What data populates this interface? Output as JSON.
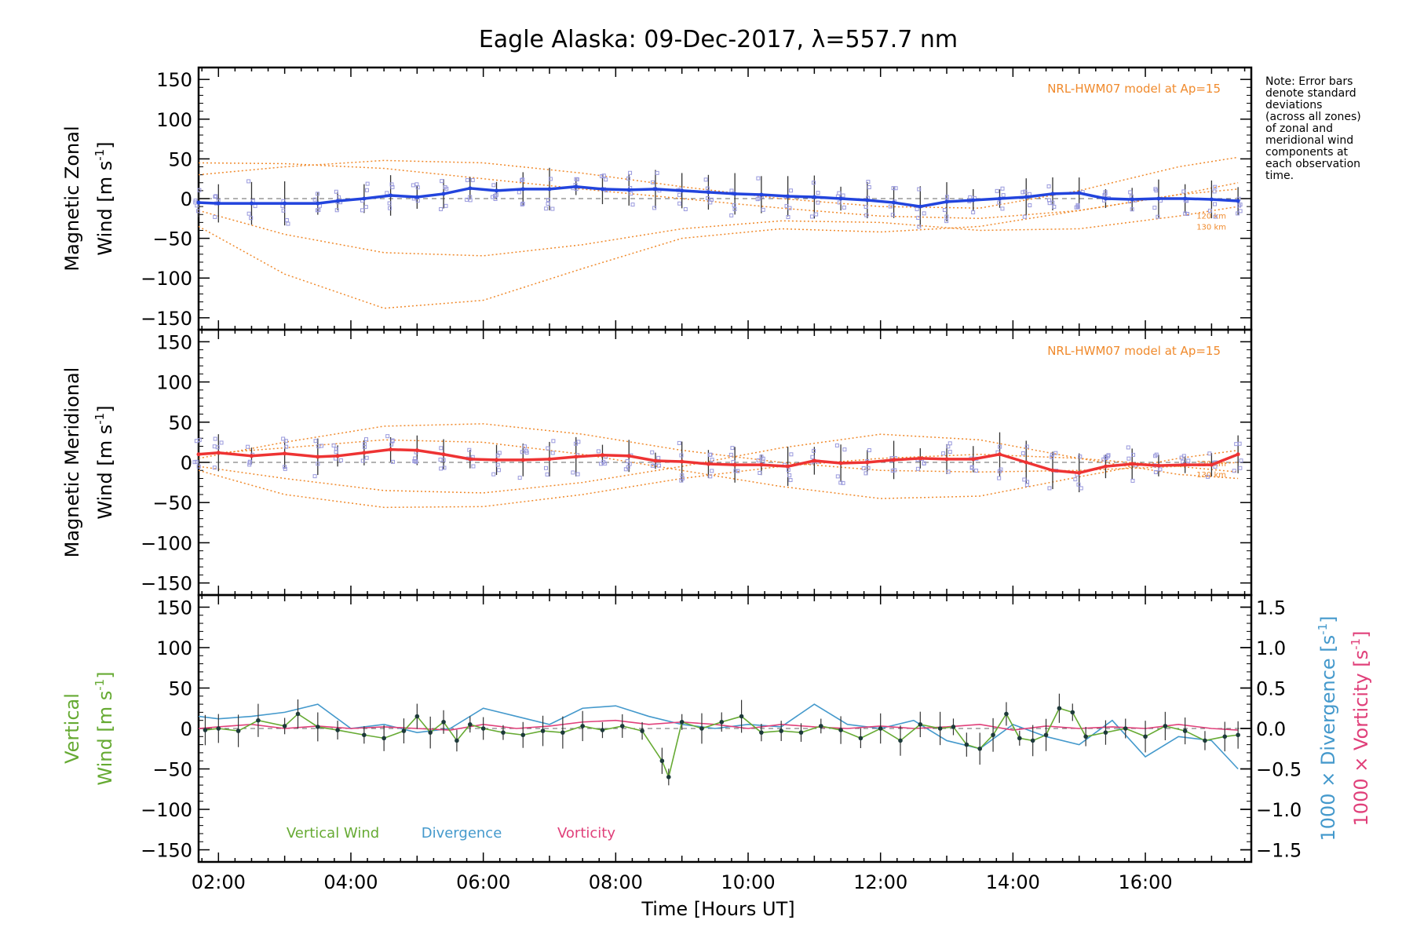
{
  "title": "Eagle Alaska: 09-Dec-2017, λ=557.7 nm",
  "note_lines": [
    "Note: Error bars",
    "denote standard",
    "deviations",
    "(across all zones)",
    "of zonal and",
    "meridional wind",
    "components at",
    "each observation",
    "time."
  ],
  "colors": {
    "zonal": "#2244dd",
    "meridional": "#ee3333",
    "vertical": "#66aa33",
    "divergence": "#4499cc",
    "vorticity": "#e0407a",
    "model": "#f08a2c",
    "zone_points": "#9999dd",
    "errorbar": "#333333"
  },
  "chart_data": [
    {
      "type": "line",
      "panel": "zonal",
      "ylabel_line1": "Magnetic Zonal",
      "ylabel_line2": "Wind [m s",
      "ylabel_sup": "-1",
      "ylabel_close": "]",
      "model_label": "NRL-HWM07 model at Ap=15",
      "alt_labels": [
        "120 km",
        "130 km"
      ],
      "ylim": [
        -165,
        165
      ],
      "yticks": [
        150,
        100,
        50,
        0,
        -50,
        -100,
        -150
      ],
      "series": [
        {
          "x": [
            1.7,
            2.0,
            2.5,
            3.0,
            3.5,
            3.8,
            4.2,
            4.6,
            5.0,
            5.4,
            5.8,
            6.2,
            6.6,
            7.0,
            7.4,
            7.8,
            8.2,
            8.6,
            9.0,
            9.4,
            9.8,
            10.2,
            10.6,
            11.0,
            11.4,
            11.8,
            12.2,
            12.6,
            13.0,
            13.4,
            13.8,
            14.2,
            14.6,
            15.0,
            15.4,
            15.8,
            16.2,
            16.6,
            17.0,
            17.4
          ],
          "values": [
            -5,
            -6,
            -6,
            -6,
            -6,
            -3,
            0,
            4,
            2,
            6,
            13,
            10,
            12,
            12,
            15,
            12,
            11,
            12,
            10,
            8,
            6,
            5,
            3,
            2,
            0,
            -2,
            -5,
            -10,
            -4,
            -2,
            0,
            2,
            6,
            7,
            0,
            -1,
            0,
            0,
            -1,
            -3
          ]
        }
      ],
      "models": [
        {
          "x": [
            1.7,
            3,
            4.5,
            6,
            7.5,
            9,
            10.5,
            12,
            13.5,
            15,
            16.5,
            17.4
          ],
          "values": [
            45,
            44,
            38,
            25,
            12,
            0,
            -12,
            -22,
            -25,
            -15,
            5,
            20
          ]
        },
        {
          "x": [
            1.7,
            3,
            4.5,
            6,
            7.5,
            9,
            10.5,
            12,
            13.5,
            15,
            16.5,
            17.4
          ],
          "values": [
            -15,
            -45,
            -68,
            -72,
            -58,
            -38,
            -28,
            -30,
            -40,
            -38,
            -22,
            -10
          ]
        },
        {
          "x": [
            1.7,
            3,
            4.5,
            6,
            7.5,
            9,
            10.5,
            12,
            13.5,
            15,
            16.5,
            17.4
          ],
          "values": [
            -35,
            -95,
            -138,
            -128,
            -88,
            -50,
            -38,
            -42,
            -35,
            -15,
            5,
            12
          ]
        },
        {
          "x": [
            1.7,
            3,
            4.5,
            6,
            7.5,
            9,
            10.5,
            12,
            13.5,
            15,
            16.5,
            17.4
          ],
          "values": [
            30,
            40,
            48,
            45,
            32,
            15,
            0,
            -10,
            -12,
            10,
            40,
            52
          ]
        }
      ]
    },
    {
      "type": "line",
      "panel": "meridional",
      "ylabel_line1": "Magnetic Meridional",
      "ylabel_line2": "Wind [m s",
      "ylabel_sup": "-1",
      "ylabel_close": "]",
      "model_label": "NRL-HWM07 model at Ap=15",
      "alt_labels": [
        "120 km",
        "130 km"
      ],
      "ylim": [
        -165,
        165
      ],
      "yticks": [
        150,
        100,
        50,
        0,
        -50,
        -100,
        -150
      ],
      "series": [
        {
          "x": [
            1.7,
            2.0,
            2.5,
            3.0,
            3.5,
            3.8,
            4.2,
            4.6,
            5.0,
            5.4,
            5.8,
            6.2,
            6.6,
            7.0,
            7.4,
            7.8,
            8.2,
            8.6,
            9.0,
            9.4,
            9.8,
            10.2,
            10.6,
            11.0,
            11.4,
            11.8,
            12.2,
            12.6,
            13.0,
            13.4,
            13.8,
            14.2,
            14.6,
            15.0,
            15.4,
            15.8,
            16.2,
            16.6,
            17.0,
            17.4
          ],
          "values": [
            10,
            12,
            8,
            11,
            7,
            8,
            12,
            16,
            15,
            10,
            4,
            3,
            3,
            4,
            7,
            9,
            8,
            2,
            1,
            -2,
            -3,
            -3,
            -5,
            2,
            -1,
            0,
            3,
            5,
            4,
            4,
            10,
            0,
            -10,
            -13,
            -5,
            -2,
            -4,
            -3,
            -3,
            10
          ]
        }
      ],
      "models": [
        {
          "x": [
            1.7,
            3,
            4.5,
            6,
            7.5,
            9,
            10.5,
            12,
            13.5,
            15,
            16.5,
            17.4
          ],
          "values": [
            -10,
            -40,
            -56,
            -55,
            -40,
            -20,
            -5,
            5,
            10,
            5,
            -5,
            -12
          ]
        },
        {
          "x": [
            1.7,
            3,
            4.5,
            6,
            7.5,
            9,
            10.5,
            12,
            13.5,
            15,
            16.5,
            17.4
          ],
          "values": [
            5,
            25,
            45,
            48,
            35,
            15,
            0,
            -10,
            -12,
            -10,
            -5,
            0
          ]
        },
        {
          "x": [
            1.7,
            3,
            4.5,
            6,
            7.5,
            9,
            10.5,
            12,
            13.5,
            15,
            16.5,
            17.4
          ],
          "values": [
            -5,
            -20,
            -35,
            -38,
            -25,
            -5,
            18,
            35,
            28,
            5,
            -15,
            -20
          ]
        },
        {
          "x": [
            1.7,
            3,
            4.5,
            6,
            7.5,
            9,
            10.5,
            12,
            13.5,
            15,
            16.5,
            17.4
          ],
          "values": [
            10,
            18,
            28,
            25,
            10,
            -10,
            -30,
            -45,
            -42,
            -18,
            5,
            15
          ]
        }
      ]
    },
    {
      "type": "line",
      "panel": "vertical",
      "ylabel_line1": "Vertical",
      "ylabel_line2": "Wind [m s",
      "ylabel_sup": "-1",
      "ylabel_close": "]",
      "ylim": [
        -165,
        165
      ],
      "yticks": [
        150,
        100,
        50,
        0,
        -50,
        -100,
        -150
      ],
      "y2label_div": "1000 × Divergence [s",
      "y2label_vor": "1000 × Vorticity [s",
      "y2label_sup": "-1",
      "y2label_close": "]",
      "y2lim": [
        -1.65,
        1.65
      ],
      "y2ticks": [
        "1.5",
        "1.0",
        "0.5",
        "0.0",
        "−0.5",
        "−1.0",
        "−1.5"
      ],
      "y2tick_values": [
        1.5,
        1.0,
        0.5,
        0.0,
        -0.5,
        -1.0,
        -1.5
      ],
      "legend": [
        "Vertical Wind",
        "Divergence",
        "Vorticity"
      ],
      "series": [
        {
          "name": "Vertical Wind",
          "x": [
            1.8,
            2.0,
            2.3,
            2.6,
            3.0,
            3.2,
            3.5,
            3.8,
            4.2,
            4.5,
            4.8,
            5.0,
            5.2,
            5.4,
            5.6,
            5.8,
            6.0,
            6.3,
            6.6,
            6.9,
            7.2,
            7.5,
            7.8,
            8.1,
            8.4,
            8.7,
            8.8,
            9.0,
            9.3,
            9.6,
            9.9,
            10.2,
            10.5,
            10.8,
            11.1,
            11.4,
            11.7,
            12.0,
            12.3,
            12.6,
            12.9,
            13.1,
            13.3,
            13.5,
            13.7,
            13.9,
            14.1,
            14.3,
            14.5,
            14.7,
            14.9,
            15.1,
            15.4,
            15.7,
            16.0,
            16.3,
            16.6,
            16.9,
            17.2,
            17.4
          ],
          "values": [
            -2,
            0,
            -3,
            10,
            3,
            18,
            2,
            -2,
            -8,
            -12,
            -3,
            15,
            -5,
            8,
            -15,
            5,
            0,
            -5,
            -8,
            -3,
            -5,
            3,
            -2,
            3,
            -3,
            -40,
            -60,
            8,
            0,
            8,
            15,
            -5,
            -3,
            -5,
            3,
            -2,
            -12,
            0,
            -15,
            5,
            0,
            2,
            -20,
            -25,
            -8,
            18,
            -12,
            -15,
            -8,
            25,
            20,
            -10,
            -5,
            0,
            -10,
            3,
            -3,
            -15,
            -10,
            -8
          ]
        },
        {
          "name": "Divergence",
          "x": [
            1.7,
            2.0,
            2.5,
            3.0,
            3.5,
            4.0,
            4.5,
            5.0,
            5.5,
            6.0,
            6.5,
            7.0,
            7.5,
            8.0,
            8.5,
            9.0,
            9.5,
            10.0,
            10.5,
            11.0,
            11.5,
            12.0,
            12.5,
            13.0,
            13.5,
            14.0,
            14.5,
            15.0,
            15.5,
            16.0,
            16.5,
            17.0,
            17.4
          ],
          "values": [
            0.15,
            0.12,
            0.15,
            0.2,
            0.3,
            0.0,
            0.05,
            -0.05,
            0.0,
            0.25,
            0.15,
            0.05,
            0.25,
            0.28,
            0.15,
            0.05,
            0.0,
            0.05,
            0.02,
            0.3,
            0.05,
            0.0,
            0.1,
            -0.15,
            -0.25,
            0.05,
            -0.1,
            -0.2,
            0.1,
            -0.35,
            -0.1,
            -0.15,
            -0.5
          ]
        },
        {
          "name": "Vorticity",
          "x": [
            1.7,
            2.0,
            2.5,
            3.0,
            3.5,
            4.0,
            4.5,
            5.0,
            5.5,
            6.0,
            6.5,
            7.0,
            7.5,
            8.0,
            8.5,
            9.0,
            9.5,
            10.0,
            10.5,
            11.0,
            11.5,
            12.0,
            12.5,
            13.0,
            13.5,
            14.0,
            14.5,
            15.0,
            15.5,
            16.0,
            16.5,
            17.0,
            17.4
          ],
          "values": [
            0.0,
            0.02,
            0.05,
            0.0,
            0.03,
            0.0,
            0.02,
            0.0,
            -0.02,
            0.05,
            0.0,
            0.03,
            0.08,
            0.1,
            0.05,
            0.08,
            0.05,
            0.0,
            0.05,
            0.02,
            0.0,
            0.03,
            0.0,
            0.02,
            0.05,
            -0.02,
            0.03,
            0.0,
            0.02,
            0.0,
            0.05,
            0.0,
            -0.02
          ]
        }
      ]
    }
  ],
  "xaxis": {
    "label": "Time [Hours UT]",
    "xlim": [
      1.7,
      17.6
    ],
    "ticks": [
      {
        "value": 2,
        "label": "02:00"
      },
      {
        "value": 4,
        "label": "04:00"
      },
      {
        "value": 6,
        "label": "06:00"
      },
      {
        "value": 8,
        "label": "08:00"
      },
      {
        "value": 10,
        "label": "10:00"
      },
      {
        "value": 12,
        "label": "12:00"
      },
      {
        "value": 14,
        "label": "14:00"
      },
      {
        "value": 16,
        "label": "16:00"
      }
    ]
  }
}
